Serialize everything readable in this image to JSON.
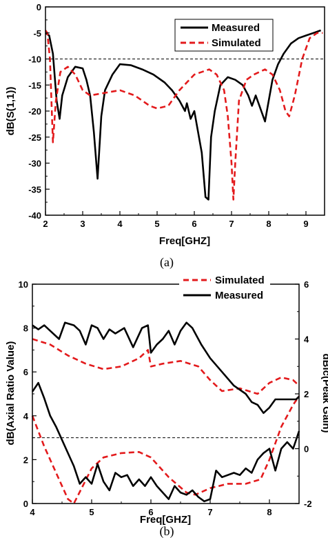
{
  "chart_data": [
    {
      "type": "line",
      "xlabel": "Freq[GHZ]",
      "ylabel": "dB(S(1,1))",
      "xlim": [
        2,
        9.5
      ],
      "ylim": [
        -40,
        0
      ],
      "x_ticks": [
        "2",
        "3",
        "4",
        "5",
        "6",
        "7",
        "8",
        "9"
      ],
      "y_ticks": [
        "0",
        "-5",
        "-10",
        "-15",
        "-20",
        "-25",
        "-30",
        "-35",
        "-40"
      ],
      "reference_line": -10,
      "legend_position": "top-right",
      "caption": "(a)",
      "series": [
        {
          "name": "Measured",
          "color": "#000000",
          "dash": "solid",
          "points": [
            [
              2.0,
              -5
            ],
            [
              2.1,
              -5.5
            ],
            [
              2.2,
              -9
            ],
            [
              2.3,
              -18
            ],
            [
              2.38,
              -21.5
            ],
            [
              2.45,
              -17
            ],
            [
              2.6,
              -13.5
            ],
            [
              2.8,
              -11.5
            ],
            [
              3.0,
              -11.8
            ],
            [
              3.1,
              -14
            ],
            [
              3.2,
              -17
            ],
            [
              3.3,
              -24
            ],
            [
              3.4,
              -33
            ],
            [
              3.5,
              -21
            ],
            [
              3.6,
              -16
            ],
            [
              3.8,
              -13
            ],
            [
              4.0,
              -11
            ],
            [
              4.3,
              -11.2
            ],
            [
              4.6,
              -12
            ],
            [
              4.9,
              -13
            ],
            [
              5.2,
              -14.5
            ],
            [
              5.4,
              -16
            ],
            [
              5.6,
              -18
            ],
            [
              5.75,
              -20
            ],
            [
              5.8,
              -18.5
            ],
            [
              5.9,
              -21.5
            ],
            [
              6.0,
              -20
            ],
            [
              6.1,
              -24
            ],
            [
              6.2,
              -28
            ],
            [
              6.3,
              -36.5
            ],
            [
              6.38,
              -37
            ],
            [
              6.45,
              -25
            ],
            [
              6.55,
              -20
            ],
            [
              6.7,
              -15
            ],
            [
              6.9,
              -13.5
            ],
            [
              7.1,
              -14
            ],
            [
              7.3,
              -15
            ],
            [
              7.45,
              -17
            ],
            [
              7.55,
              -19
            ],
            [
              7.65,
              -17
            ],
            [
              7.75,
              -19
            ],
            [
              7.9,
              -22
            ],
            [
              8.0,
              -18
            ],
            [
              8.1,
              -14
            ],
            [
              8.25,
              -11
            ],
            [
              8.4,
              -9
            ],
            [
              8.6,
              -7
            ],
            [
              8.8,
              -6
            ],
            [
              9.0,
              -5.5
            ],
            [
              9.2,
              -5
            ],
            [
              9.4,
              -4.5
            ]
          ]
        },
        {
          "name": "Simulated",
          "color": "#e31a1c",
          "dash": "dashed",
          "points": [
            [
              2.0,
              -4.5
            ],
            [
              2.05,
              -5
            ],
            [
              2.12,
              -10
            ],
            [
              2.2,
              -26
            ],
            [
              2.28,
              -18
            ],
            [
              2.4,
              -12.5
            ],
            [
              2.6,
              -11.5
            ],
            [
              2.8,
              -13
            ],
            [
              3.0,
              -16
            ],
            [
              3.2,
              -17
            ],
            [
              3.6,
              -16.5
            ],
            [
              4.0,
              -16
            ],
            [
              4.4,
              -17
            ],
            [
              4.8,
              -19
            ],
            [
              5.0,
              -19.5
            ],
            [
              5.3,
              -19
            ],
            [
              5.6,
              -16
            ],
            [
              6.0,
              -13
            ],
            [
              6.4,
              -12
            ],
            [
              6.6,
              -13
            ],
            [
              6.8,
              -16
            ],
            [
              6.9,
              -21
            ],
            [
              7.0,
              -30
            ],
            [
              7.05,
              -37
            ],
            [
              7.1,
              -30
            ],
            [
              7.2,
              -18
            ],
            [
              7.4,
              -14
            ],
            [
              7.6,
              -13
            ],
            [
              7.9,
              -12
            ],
            [
              8.1,
              -13
            ],
            [
              8.3,
              -16
            ],
            [
              8.45,
              -20
            ],
            [
              8.55,
              -21
            ],
            [
              8.7,
              -17
            ],
            [
              8.9,
              -10
            ],
            [
              9.1,
              -6
            ],
            [
              9.3,
              -5
            ],
            [
              9.45,
              -5
            ]
          ]
        }
      ]
    },
    {
      "type": "line",
      "xlabel": "Freq[GHZ]",
      "ylabel": "dB(Axial Ratio Value)",
      "y2label": "dBic(Peak Gain)",
      "xlim": [
        4,
        8.5
      ],
      "ylim": [
        0,
        10
      ],
      "y2lim": [
        -2,
        6
      ],
      "x_ticks": [
        "4",
        "5",
        "6",
        "7",
        "8"
      ],
      "y_ticks": [
        "0",
        "2",
        "4",
        "6",
        "8",
        "10"
      ],
      "y2_ticks": [
        "-2",
        "0",
        "2",
        "4",
        "6"
      ],
      "reference_line": 3,
      "legend_position": "top-right",
      "caption": "(b)",
      "series": [
        {
          "name": "Simulated",
          "color": "#e31a1c",
          "dash": "dashed",
          "groups": [
            {
              "quantity": "axial_ratio",
              "axis": "left",
              "points": [
                [
                  4.0,
                  4.0
                ],
                [
                  4.2,
                  2.6
                ],
                [
                  4.4,
                  1.4
                ],
                [
                  4.6,
                  0.2
                ],
                [
                  4.7,
                  0.0
                ],
                [
                  4.85,
                  0.8
                ],
                [
                  5.0,
                  1.6
                ],
                [
                  5.2,
                  2.1
                ],
                [
                  5.5,
                  2.3
                ],
                [
                  5.8,
                  2.35
                ],
                [
                  6.0,
                  2.1
                ],
                [
                  6.3,
                  1.2
                ],
                [
                  6.6,
                  0.5
                ],
                [
                  6.75,
                  0.4
                ],
                [
                  7.0,
                  0.7
                ],
                [
                  7.3,
                  0.9
                ],
                [
                  7.6,
                  0.9
                ],
                [
                  7.85,
                  1.1
                ],
                [
                  8.0,
                  2.0
                ],
                [
                  8.2,
                  3.5
                ],
                [
                  8.4,
                  4.5
                ],
                [
                  8.5,
                  4.9
                ]
              ]
            },
            {
              "quantity": "peak_gain",
              "axis": "right",
              "points": [
                [
                  4.0,
                  4.0
                ],
                [
                  4.3,
                  3.8
                ],
                [
                  4.6,
                  3.4
                ],
                [
                  4.9,
                  3.1
                ],
                [
                  5.2,
                  2.9
                ],
                [
                  5.5,
                  3.0
                ],
                [
                  5.8,
                  3.3
                ],
                [
                  5.95,
                  3.6
                ],
                [
                  6.0,
                  3.0
                ],
                [
                  6.2,
                  3.1
                ],
                [
                  6.5,
                  3.2
                ],
                [
                  6.8,
                  3.0
                ],
                [
                  7.0,
                  2.5
                ],
                [
                  7.2,
                  2.1
                ],
                [
                  7.5,
                  2.2
                ],
                [
                  7.8,
                  2.0
                ],
                [
                  8.0,
                  2.4
                ],
                [
                  8.2,
                  2.6
                ],
                [
                  8.4,
                  2.5
                ],
                [
                  8.5,
                  2.3
                ]
              ]
            }
          ]
        },
        {
          "name": "Measured",
          "color": "#000000",
          "dash": "solid",
          "groups": [
            {
              "quantity": "peak_gain",
              "axis": "right",
              "points": [
                [
                  4.0,
                  4.5
                ],
                [
                  4.1,
                  4.35
                ],
                [
                  4.2,
                  4.5
                ],
                [
                  4.3,
                  4.3
                ],
                [
                  4.45,
                  4.0
                ],
                [
                  4.55,
                  4.6
                ],
                [
                  4.7,
                  4.5
                ],
                [
                  4.8,
                  4.3
                ],
                [
                  4.9,
                  3.8
                ],
                [
                  5.0,
                  4.5
                ],
                [
                  5.1,
                  4.4
                ],
                [
                  5.2,
                  4.0
                ],
                [
                  5.3,
                  4.35
                ],
                [
                  5.4,
                  4.2
                ],
                [
                  5.55,
                  4.4
                ],
                [
                  5.7,
                  3.7
                ],
                [
                  5.85,
                  4.4
                ],
                [
                  5.95,
                  4.5
                ],
                [
                  6.0,
                  3.5
                ],
                [
                  6.1,
                  3.8
                ],
                [
                  6.2,
                  4.0
                ],
                [
                  6.3,
                  4.3
                ],
                [
                  6.4,
                  3.8
                ],
                [
                  6.5,
                  4.3
                ],
                [
                  6.6,
                  4.6
                ],
                [
                  6.7,
                  4.4
                ],
                [
                  6.85,
                  3.8
                ],
                [
                  7.0,
                  3.3
                ],
                [
                  7.2,
                  2.8
                ],
                [
                  7.4,
                  2.3
                ],
                [
                  7.6,
                  2.0
                ],
                [
                  7.7,
                  1.7
                ],
                [
                  7.8,
                  1.6
                ],
                [
                  7.9,
                  1.3
                ],
                [
                  8.0,
                  1.5
                ],
                [
                  8.1,
                  1.8
                ],
                [
                  8.3,
                  1.8
                ],
                [
                  8.45,
                  1.8
                ],
                [
                  8.5,
                  1.9
                ]
              ]
            },
            {
              "quantity": "axial_ratio",
              "axis": "left",
              "points": [
                [
                  4.0,
                  5.1
                ],
                [
                  4.1,
                  5.5
                ],
                [
                  4.2,
                  4.8
                ],
                [
                  4.3,
                  4.0
                ],
                [
                  4.4,
                  3.5
                ],
                [
                  4.5,
                  2.9
                ],
                [
                  4.6,
                  2.3
                ],
                [
                  4.7,
                  1.7
                ],
                [
                  4.8,
                  0.9
                ],
                [
                  4.9,
                  1.2
                ],
                [
                  5.0,
                  0.9
                ],
                [
                  5.1,
                  1.8
                ],
                [
                  5.2,
                  1.0
                ],
                [
                  5.3,
                  0.6
                ],
                [
                  5.4,
                  1.4
                ],
                [
                  5.5,
                  1.2
                ],
                [
                  5.6,
                  1.3
                ],
                [
                  5.7,
                  0.8
                ],
                [
                  5.8,
                  1.1
                ],
                [
                  5.9,
                  0.8
                ],
                [
                  6.0,
                  1.2
                ],
                [
                  6.1,
                  0.8
                ],
                [
                  6.2,
                  0.5
                ],
                [
                  6.3,
                  0.2
                ],
                [
                  6.4,
                  0.8
                ],
                [
                  6.5,
                  0.5
                ],
                [
                  6.6,
                  0.4
                ],
                [
                  6.7,
                  0.6
                ],
                [
                  6.8,
                  0.3
                ],
                [
                  6.9,
                  0.1
                ],
                [
                  7.0,
                  0.2
                ],
                [
                  7.1,
                  1.5
                ],
                [
                  7.2,
                  1.2
                ],
                [
                  7.4,
                  1.4
                ],
                [
                  7.5,
                  1.3
                ],
                [
                  7.6,
                  1.6
                ],
                [
                  7.7,
                  1.4
                ],
                [
                  7.8,
                  2.0
                ],
                [
                  7.9,
                  2.3
                ],
                [
                  8.0,
                  2.5
                ],
                [
                  8.1,
                  1.5
                ],
                [
                  8.2,
                  2.5
                ],
                [
                  8.3,
                  2.8
                ],
                [
                  8.4,
                  2.5
                ],
                [
                  8.5,
                  3.3
                ]
              ]
            }
          ]
        }
      ]
    }
  ],
  "styles": {
    "red": "#e31a1c",
    "black": "#000000"
  }
}
